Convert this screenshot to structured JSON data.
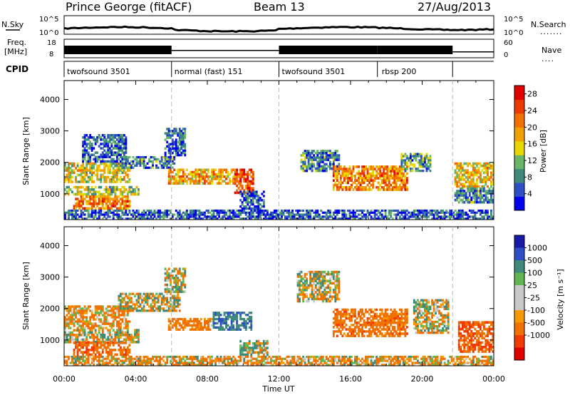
{
  "header": {
    "station": "Prince George (fitACF)",
    "beam": "Beam 13",
    "date": "27/Aug/2013"
  },
  "noise_panel": {
    "left_label": "N.Sky",
    "left_ticks": [
      "10^5",
      "10^0"
    ],
    "right_label": "N.Search",
    "right_ticks": [
      "10^5",
      "10^0"
    ]
  },
  "freq_panel": {
    "left_label_1": "Freq.",
    "left_label_2": "[MHz]",
    "left_ticks": [
      "18",
      "8"
    ],
    "right_label": "Nave",
    "right_ticks": [
      "60",
      "0"
    ]
  },
  "cpid": {
    "label": "CPID",
    "segments": [
      {
        "name": "twofsound 3501",
        "start": 0,
        "end": 6
      },
      {
        "name": "normal (fast) 151",
        "start": 6,
        "end": 12
      },
      {
        "name": "twofsound 3501",
        "start": 12,
        "end": 17.5
      },
      {
        "name": "rbsp 200",
        "start": 17.5,
        "end": 21.7
      }
    ]
  },
  "colors": {
    "power": [
      "#0000ee",
      "#2e4fc8",
      "#3f8a7a",
      "#69b56a",
      "#e8d800",
      "#f2a200",
      "#f07000",
      "#ea3a00",
      "#e00000"
    ],
    "velocity": [
      "#e00000",
      "#f03a00",
      "#f07000",
      "#f59a00",
      "#c8c8c8",
      "#c8c8c8",
      "#62b850",
      "#3f8a7a",
      "#2e4fc8",
      "#1a1aa8"
    ]
  },
  "chart_data": [
    {
      "type": "heatmap",
      "title": "Power",
      "xlabel": "Time UT",
      "ylabel": "Slant Range [km]",
      "x_ticks": [
        "00:00",
        "04:00",
        "08:00",
        "12:00",
        "16:00",
        "20:00",
        "00:00"
      ],
      "xlim_hours": [
        0,
        24
      ],
      "y_ticks": [
        1000,
        2000,
        3000,
        4000
      ],
      "ylim": [
        180,
        4600
      ],
      "colorbar": {
        "label": "Power [dB]",
        "ticks": [
          4,
          8,
          12,
          16,
          20,
          24,
          28
        ],
        "range": [
          0,
          30
        ]
      },
      "regions": [
        {
          "t0": 0.0,
          "t1": 3.7,
          "r0": 1350,
          "r1": 2000,
          "level": 16
        },
        {
          "t0": 0.0,
          "t1": 4.2,
          "r0": 950,
          "r1": 1250,
          "level": 14
        },
        {
          "t0": 0.5,
          "t1": 3.7,
          "r0": 500,
          "r1": 950,
          "level": 22
        },
        {
          "t0": 1.0,
          "t1": 3.5,
          "r0": 2000,
          "r1": 2900,
          "level": 6
        },
        {
          "t0": 3.2,
          "t1": 6.2,
          "r0": 1800,
          "r1": 2200,
          "level": 8
        },
        {
          "t0": 5.6,
          "t1": 6.8,
          "r0": 2200,
          "r1": 3100,
          "level": 6
        },
        {
          "t0": 5.8,
          "t1": 9.5,
          "r0": 1300,
          "r1": 1800,
          "level": 20
        },
        {
          "t0": 9.5,
          "t1": 10.6,
          "r0": 1000,
          "r1": 1800,
          "level": 26
        },
        {
          "t0": 9.8,
          "t1": 11.2,
          "r0": 500,
          "r1": 1100,
          "level": 6
        },
        {
          "t0": 13.2,
          "t1": 15.4,
          "r0": 1700,
          "r1": 2400,
          "level": 8
        },
        {
          "t0": 15.0,
          "t1": 19.2,
          "r0": 1100,
          "r1": 1900,
          "level": 22
        },
        {
          "t0": 18.8,
          "t1": 20.5,
          "r0": 1700,
          "r1": 2300,
          "level": 10
        },
        {
          "t0": 21.8,
          "t1": 24.0,
          "r0": 1200,
          "r1": 2000,
          "level": 18
        },
        {
          "t0": 21.8,
          "t1": 24.0,
          "r0": 700,
          "r1": 1200,
          "level": 8
        },
        {
          "t0": 0.0,
          "t1": 24.0,
          "r0": 180,
          "r1": 500,
          "level": 6
        }
      ]
    },
    {
      "type": "heatmap",
      "title": "Velocity",
      "xlabel": "Time UT",
      "ylabel": "Slant Range [km]",
      "x_ticks": [
        "00:00",
        "04:00",
        "08:00",
        "12:00",
        "16:00",
        "20:00",
        "00:00"
      ],
      "xlim_hours": [
        0,
        24
      ],
      "y_ticks": [
        1000,
        2000,
        3000,
        4000
      ],
      "ylim": [
        180,
        4600
      ],
      "colorbar": {
        "label": "Velocity [m s⁻¹]",
        "ticks": [
          1000,
          500,
          100,
          25,
          -25,
          -100,
          -500,
          -1000
        ]
      },
      "regions": [
        {
          "t0": 0.0,
          "t1": 3.7,
          "r0": 1350,
          "r1": 2100,
          "level": -150
        },
        {
          "t0": 0.0,
          "t1": 4.2,
          "r0": 900,
          "r1": 1350,
          "level": 0
        },
        {
          "t0": 0.5,
          "t1": 3.7,
          "r0": 500,
          "r1": 950,
          "level": -400
        },
        {
          "t0": 3.0,
          "t1": 6.5,
          "r0": 1900,
          "r1": 2500,
          "level": 0
        },
        {
          "t0": 5.6,
          "t1": 6.8,
          "r0": 2500,
          "r1": 3300,
          "level": 0
        },
        {
          "t0": 5.8,
          "t1": 8.4,
          "r0": 1300,
          "r1": 1700,
          "level": -250
        },
        {
          "t0": 8.3,
          "t1": 10.5,
          "r0": 1300,
          "r1": 1900,
          "level": 400
        },
        {
          "t0": 9.8,
          "t1": 11.4,
          "r0": 500,
          "r1": 1000,
          "level": 60
        },
        {
          "t0": 13.0,
          "t1": 15.4,
          "r0": 2200,
          "r1": 3200,
          "level": 0
        },
        {
          "t0": 15.0,
          "t1": 19.2,
          "r0": 1100,
          "r1": 2000,
          "level": -300
        },
        {
          "t0": 19.5,
          "t1": 21.5,
          "r0": 1200,
          "r1": 2300,
          "level": 0
        },
        {
          "t0": 22.0,
          "t1": 24.0,
          "r0": 600,
          "r1": 1600,
          "level": -500
        },
        {
          "t0": 0.0,
          "t1": 24.0,
          "r0": 180,
          "r1": 500,
          "level": -100
        }
      ]
    }
  ]
}
